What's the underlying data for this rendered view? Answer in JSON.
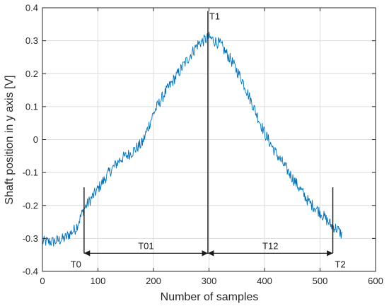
{
  "chart_data": {
    "type": "line",
    "title": "",
    "xlabel": "Number of samples",
    "ylabel": "Shaft position in y axis [V]",
    "xlim": [
      0,
      600
    ],
    "ylim": [
      -0.4,
      0.4
    ],
    "xticks": [
      0,
      100,
      200,
      300,
      400,
      500,
      600
    ],
    "xtick_labels": [
      "0",
      "100",
      "200",
      "300",
      "400",
      "500",
      "600"
    ],
    "yticks": [
      -0.4,
      -0.3,
      -0.2,
      -0.1,
      0,
      0.1,
      0.2,
      0.3,
      0.4
    ],
    "ytick_labels": [
      "-0.4",
      "-0.3",
      "-0.2",
      "-0.1",
      "0",
      "0.1",
      "0.2",
      "0.3",
      "0.4"
    ],
    "grid": true,
    "line_color": "#0072BD",
    "noise_amplitude": 0.018,
    "series": [
      {
        "x": [
          0,
          20,
          40,
          60,
          75,
          100,
          120,
          140,
          160,
          180,
          200,
          220,
          240,
          260,
          280,
          300,
          320,
          340,
          360,
          380,
          400,
          420,
          440,
          460,
          480,
          500,
          520,
          530,
          540
        ],
        "values": [
          -0.31,
          -0.31,
          -0.3,
          -0.27,
          -0.21,
          -0.15,
          -0.1,
          -0.06,
          -0.04,
          -0.01,
          0.08,
          0.14,
          0.19,
          0.24,
          0.29,
          0.31,
          0.29,
          0.24,
          0.18,
          0.1,
          0.02,
          -0.04,
          -0.09,
          -0.14,
          -0.19,
          -0.22,
          -0.26,
          -0.27,
          -0.29
        ]
      }
    ],
    "markers": [
      {
        "label": "T0",
        "x": 75,
        "y_top": -0.145,
        "y_bottom": -0.345
      },
      {
        "label": "T1",
        "x": 298,
        "y_top": 0.39,
        "y_bottom": -0.345
      },
      {
        "label": "T2",
        "x": 523,
        "y_top": -0.145,
        "y_bottom": -0.345
      }
    ],
    "intervals": [
      {
        "label": "T01",
        "x_start": 75,
        "x_end": 298,
        "y": -0.345
      },
      {
        "label": "T12",
        "x_start": 298,
        "x_end": 523,
        "y": -0.345
      }
    ]
  }
}
